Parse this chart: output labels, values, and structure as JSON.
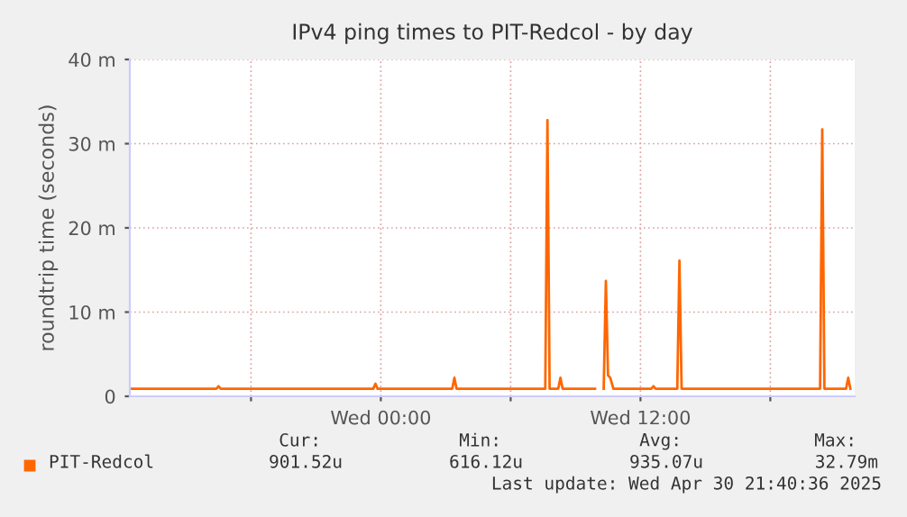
{
  "chart_data": {
    "type": "line",
    "title": "IPv4 ping times to PIT-Redcol - by day",
    "ylabel": "roundtrip time (seconds)",
    "x": [
      "2025-04-29T12:27",
      "2025-04-29T16:24",
      "2025-04-29T16:30",
      "2025-04-29T16:36",
      "2025-04-29T23:39",
      "2025-04-29T23:45",
      "2025-04-29T23:51",
      "2025-04-30T03:18",
      "2025-04-30T03:24",
      "2025-04-30T03:30",
      "2025-04-30T07:36",
      "2025-04-30T07:42",
      "2025-04-30T07:48",
      "2025-04-30T08:12",
      "2025-04-30T08:18",
      "2025-04-30T08:24",
      "2025-04-30T09:54",
      "2025-04-30T10:05",
      "2025-04-30T10:18",
      "2025-04-30T10:24",
      "2025-04-30T10:30",
      "2025-04-30T10:36",
      "2025-04-30T10:45",
      "2025-04-30T12:30",
      "2025-04-30T12:36",
      "2025-04-30T12:42",
      "2025-04-30T13:42",
      "2025-04-30T13:48",
      "2025-04-30T13:54",
      "2025-04-30T20:18",
      "2025-04-30T20:24",
      "2025-04-30T20:30",
      "2025-04-30T21:30",
      "2025-04-30T21:36",
      "2025-04-30T21:42"
    ],
    "series": [
      {
        "name": "PIT-Redcol",
        "color": "#ff6600",
        "values": [
          0.9,
          0.9,
          1.2,
          0.9,
          0.9,
          1.5,
          0.9,
          0.9,
          2.2,
          0.9,
          0.9,
          32.8,
          0.9,
          0.9,
          2.2,
          0.9,
          0.9,
          null,
          0.9,
          13.7,
          2.5,
          2.2,
          0.9,
          0.9,
          1.2,
          0.9,
          0.9,
          16.1,
          0.9,
          0.9,
          31.7,
          0.9,
          0.9,
          2.2,
          0.9
        ]
      }
    ],
    "xlim": [
      "2025-04-29T12:24",
      "2025-04-30T21:54"
    ],
    "xticks": [
      {
        "value": "2025-04-29T18:00",
        "label": null
      },
      {
        "value": "2025-04-30T00:00",
        "label": "Wed 00:00"
      },
      {
        "value": "2025-04-30T06:00",
        "label": null
      },
      {
        "value": "2025-04-30T12:00",
        "label": "Wed 12:00"
      },
      {
        "value": "2025-04-30T18:00",
        "label": null
      }
    ],
    "ylim": [
      0,
      40
    ],
    "yticks": [
      0,
      {
        "value": 10,
        "label": "10 m"
      },
      {
        "value": 20,
        "label": "20 m"
      },
      {
        "value": 30,
        "label": "30 m"
      },
      {
        "value": 40,
        "label": "40 m"
      }
    ],
    "grid": true,
    "legend": "bottom",
    "annotations": [
      "Cur:",
      "Min:",
      "Avg:",
      "Max:",
      "901.52u",
      "616.12u",
      "935.07u",
      "32.79m",
      "Last update: Wed Apr 30 21:40:36 2025"
    ]
  }
}
